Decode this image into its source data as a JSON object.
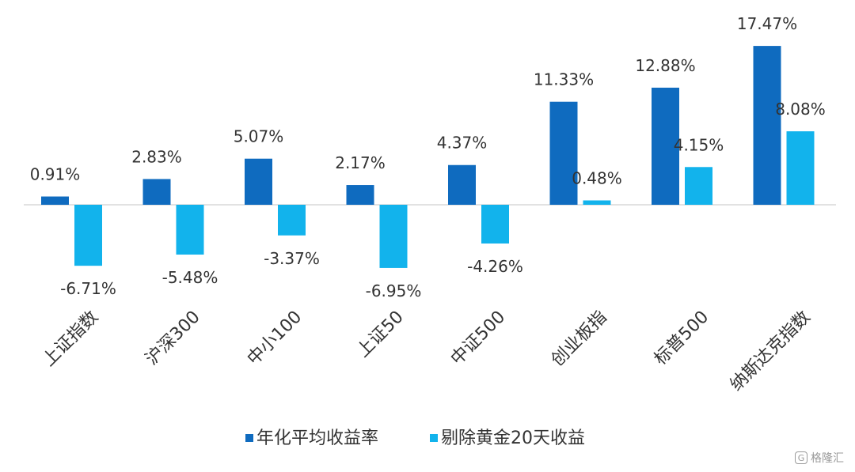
{
  "chart_data": {
    "type": "bar",
    "title": "",
    "xlabel": "",
    "ylabel": "",
    "ylim": [
      -8,
      18
    ],
    "grid": false,
    "legend_position": "bottom",
    "categories": [
      "上证指数",
      "沪深300",
      "中小100",
      "上证50",
      "中证500",
      "创业板指",
      "标普500",
      "纳斯达克指数"
    ],
    "series": [
      {
        "name": "年化平均收益率",
        "color": "#0f6bbf",
        "values": [
          0.91,
          2.83,
          5.07,
          2.17,
          4.37,
          11.33,
          12.88,
          17.47
        ],
        "labels": [
          "0.91%",
          "2.83%",
          "5.07%",
          "2.17%",
          "4.37%",
          "11.33%",
          "12.88%",
          "17.47%"
        ]
      },
      {
        "name": "剔除黄金20天收益",
        "color": "#12b3ec",
        "values": [
          -6.71,
          -5.48,
          -3.37,
          -6.95,
          -4.26,
          0.48,
          4.15,
          8.08
        ],
        "labels": [
          "-6.71%",
          "-5.48%",
          "-3.37%",
          "-6.95%",
          "-4.26%",
          "0.48%",
          "4.15%",
          "8.08%"
        ]
      }
    ]
  },
  "watermark": {
    "icon": "G",
    "text": "格隆汇"
  }
}
